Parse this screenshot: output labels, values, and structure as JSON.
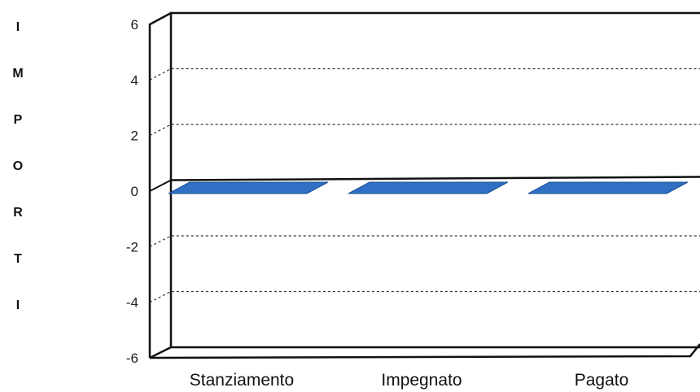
{
  "chart_data": {
    "type": "bar",
    "ylabel": "IMPORTI",
    "categories": [
      "Stanziamento",
      "Impegnato",
      "Pagato"
    ],
    "series": [
      {
        "values": [
          0,
          0,
          0
        ],
        "color": "#2f6fc4"
      }
    ],
    "ylim": [
      -6,
      6
    ],
    "yticks": [
      "6",
      "4",
      "2",
      "0",
      "-2",
      "-4",
      "-6"
    ],
    "grid": true,
    "grid_style": "dashed",
    "three_d": true
  }
}
